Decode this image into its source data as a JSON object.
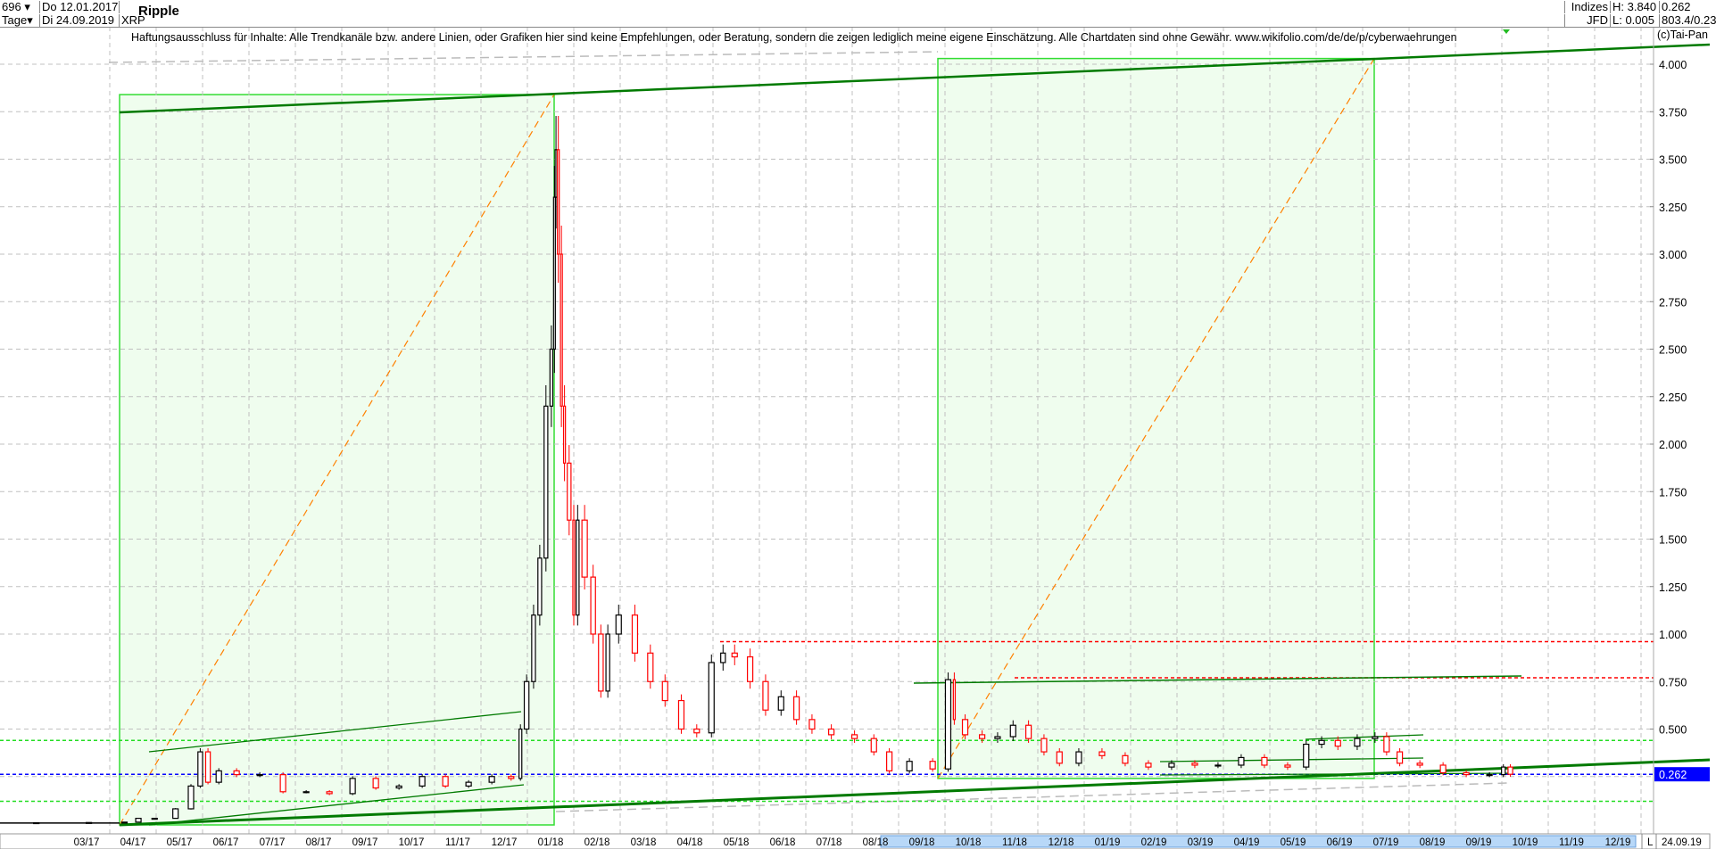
{
  "header": {
    "count_select": "696",
    "period_select": "Tage",
    "date_from": "Do 12.01.2017",
    "date_to": "Di 24.09.2019",
    "symbol": "XRP",
    "title": "Ripple",
    "source_1": "Indizes",
    "source_2": "JFD",
    "high": "H: 3.840",
    "low": "L: 0.005",
    "last": "0.262",
    "extra": "803.4/0.23"
  },
  "disclaimer": "Haftungsausschluss für Inhalte: Alle Trendkanäle bzw. andere Linien, oder Grafiken hier sind keine Empfehlungen, oder Beratung, sondern die zeigen lediglich meine eigene Einschätzung. Alle Chartdaten sind ohne Gewähr.  www.wikifolio.com/de/de/p/cyberwaehrungen",
  "copyright": "(c)Tai-Pan",
  "footer": {
    "mode": "L",
    "date": "24.09.19"
  },
  "colors": {
    "up": "#000000",
    "down": "#ff0000",
    "trend": "#007a00",
    "box": "#33dd33",
    "box_fill": "#effdee",
    "fib": "#ff8000",
    "last_price": "#0000ff",
    "resistance": "#ff0000",
    "support": "#22dd22"
  },
  "chart_data": {
    "type": "candlestick",
    "ylim": [
      0,
      4.0
    ],
    "yticks": [
      "4.000",
      "3.750",
      "3.500",
      "3.250",
      "3.000",
      "2.750",
      "2.500",
      "2.250",
      "2.000",
      "1.750",
      "1.500",
      "1.250",
      "1.000",
      "0.750",
      "0.500",
      "0.262"
    ],
    "xticks": [
      "03/17",
      "04/17",
      "05/17",
      "06/17",
      "07/17",
      "08/17",
      "09/17",
      "10/17",
      "11/17",
      "12/17",
      "01/18",
      "02/18",
      "03/18",
      "04/18",
      "05/18",
      "06/18",
      "07/18",
      "08/18",
      "09/18",
      "10/18",
      "11/18",
      "12/18",
      "01/19",
      "02/19",
      "03/19",
      "04/19",
      "05/19",
      "06/19",
      "07/19",
      "08/19",
      "09/19",
      "10/19",
      "11/19",
      "12/19"
    ],
    "grid": true,
    "last_price": 0.262,
    "horizontal_levels": {
      "resistance": [
        0.96,
        0.77
      ],
      "support": [
        0.44,
        0.12
      ]
    },
    "series": [
      [
        "2017-01-12",
        0.006
      ],
      [
        "2017-02-15",
        0.007
      ],
      [
        "2017-03-20",
        0.008
      ],
      [
        "2017-04-01",
        0.01
      ],
      [
        "2017-04-08",
        0.03
      ],
      [
        "2017-04-22",
        0.03
      ],
      [
        "2017-05-05",
        0.08
      ],
      [
        "2017-05-12",
        0.2
      ],
      [
        "2017-05-17",
        0.38
      ],
      [
        "2017-05-22",
        0.22
      ],
      [
        "2017-06-01",
        0.28
      ],
      [
        "2017-06-15",
        0.26
      ],
      [
        "2017-07-01",
        0.26
      ],
      [
        "2017-07-15",
        0.17
      ],
      [
        "2017-08-01",
        0.17
      ],
      [
        "2017-08-15",
        0.16
      ],
      [
        "2017-09-01",
        0.24
      ],
      [
        "2017-09-15",
        0.19
      ],
      [
        "2017-10-01",
        0.2
      ],
      [
        "2017-10-15",
        0.25
      ],
      [
        "2017-11-01",
        0.2
      ],
      [
        "2017-11-15",
        0.22
      ],
      [
        "2017-12-01",
        0.25
      ],
      [
        "2017-12-10",
        0.24
      ],
      [
        "2017-12-13",
        0.5
      ],
      [
        "2017-12-18",
        0.75
      ],
      [
        "2017-12-22",
        1.1
      ],
      [
        "2017-12-26",
        1.4
      ],
      [
        "2017-12-30",
        2.2
      ],
      [
        "2018-01-03",
        2.5
      ],
      [
        "2018-01-04",
        3.3
      ],
      [
        "2018-01-05",
        3.55
      ],
      [
        "2018-01-07",
        3.0
      ],
      [
        "2018-01-09",
        2.2
      ],
      [
        "2018-01-11",
        1.9
      ],
      [
        "2018-01-15",
        1.6
      ],
      [
        "2018-01-17",
        1.1
      ],
      [
        "2018-01-20",
        1.6
      ],
      [
        "2018-01-26",
        1.3
      ],
      [
        "2018-02-01",
        1.0
      ],
      [
        "2018-02-06",
        0.7
      ],
      [
        "2018-02-10",
        1.0
      ],
      [
        "2018-02-20",
        1.1
      ],
      [
        "2018-03-01",
        0.9
      ],
      [
        "2018-03-10",
        0.75
      ],
      [
        "2018-03-20",
        0.65
      ],
      [
        "2018-04-01",
        0.5
      ],
      [
        "2018-04-10",
        0.48
      ],
      [
        "2018-04-20",
        0.85
      ],
      [
        "2018-04-25",
        0.9
      ],
      [
        "2018-05-05",
        0.88
      ],
      [
        "2018-05-15",
        0.75
      ],
      [
        "2018-05-25",
        0.6
      ],
      [
        "2018-06-05",
        0.67
      ],
      [
        "2018-06-15",
        0.55
      ],
      [
        "2018-06-25",
        0.5
      ],
      [
        "2018-07-10",
        0.47
      ],
      [
        "2018-07-25",
        0.45
      ],
      [
        "2018-08-05",
        0.38
      ],
      [
        "2018-08-15",
        0.28
      ],
      [
        "2018-09-01",
        0.33
      ],
      [
        "2018-09-15",
        0.29
      ],
      [
        "2018-09-21",
        0.76
      ],
      [
        "2018-09-23",
        0.55
      ],
      [
        "2018-10-05",
        0.47
      ],
      [
        "2018-10-15",
        0.45
      ],
      [
        "2018-10-25",
        0.46
      ],
      [
        "2018-11-05",
        0.52
      ],
      [
        "2018-11-15",
        0.45
      ],
      [
        "2018-11-25",
        0.38
      ],
      [
        "2018-12-05",
        0.32
      ],
      [
        "2018-12-20",
        0.38
      ],
      [
        "2019-01-05",
        0.36
      ],
      [
        "2019-01-20",
        0.32
      ],
      [
        "2019-02-05",
        0.3
      ],
      [
        "2019-02-20",
        0.32
      ],
      [
        "2019-03-05",
        0.31
      ],
      [
        "2019-03-20",
        0.31
      ],
      [
        "2019-04-05",
        0.35
      ],
      [
        "2019-04-20",
        0.31
      ],
      [
        "2019-05-05",
        0.3
      ],
      [
        "2019-05-14",
        0.42
      ],
      [
        "2019-05-25",
        0.44
      ],
      [
        "2019-06-05",
        0.41
      ],
      [
        "2019-06-20",
        0.45
      ],
      [
        "2019-06-28",
        0.46
      ],
      [
        "2019-07-05",
        0.38
      ],
      [
        "2019-07-15",
        0.32
      ],
      [
        "2019-08-01",
        0.31
      ],
      [
        "2019-08-15",
        0.27
      ],
      [
        "2019-09-01",
        0.26
      ],
      [
        "2019-09-15",
        0.26
      ],
      [
        "2019-09-19",
        0.3
      ],
      [
        "2019-09-24",
        0.262
      ]
    ]
  }
}
